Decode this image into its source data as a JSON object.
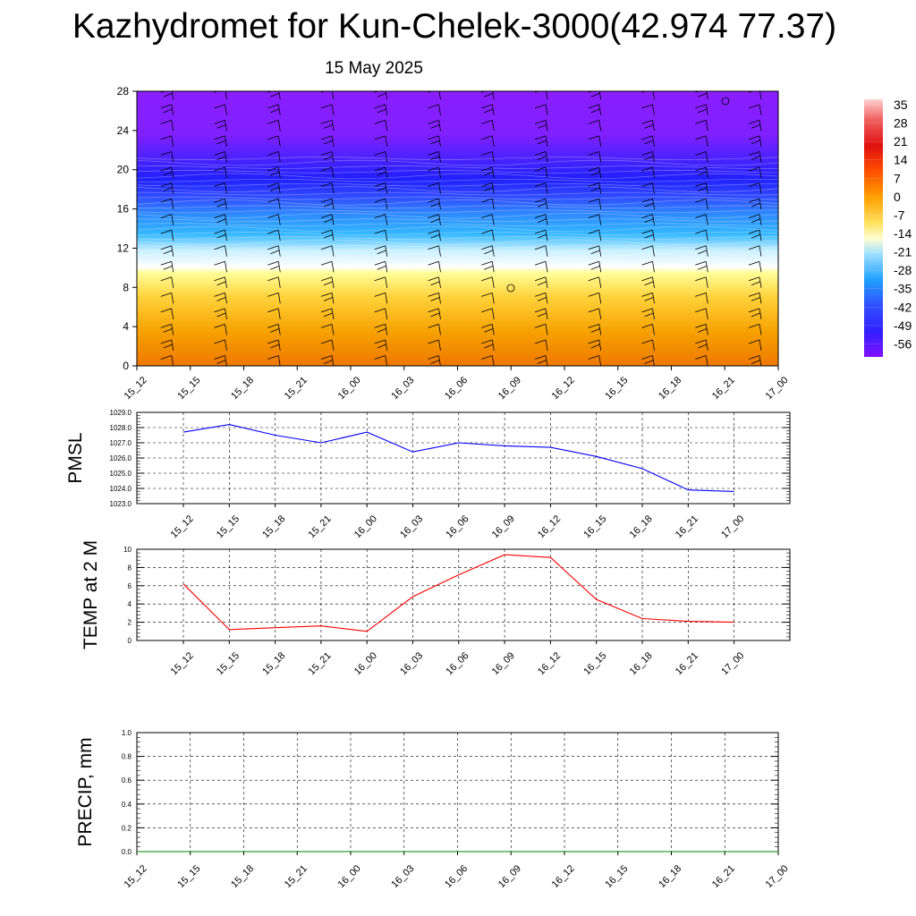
{
  "page": {
    "title": "Kazhydromet for Kun-Chelek-3000(42.974 77.37)",
    "date": "15 May 2025"
  },
  "time_labels": [
    "15_12",
    "15_15",
    "15_18",
    "15_21",
    "16_00",
    "16_03",
    "16_06",
    "16_09",
    "16_12",
    "16_15",
    "16_18",
    "16_21",
    "17_00"
  ],
  "colorbar": {
    "labels": [
      "35",
      "28",
      "21",
      "14",
      "7",
      "0",
      "-7",
      "-14",
      "-21",
      "-28",
      "-35",
      "-42",
      "-49",
      "-56"
    ]
  },
  "chart_data": [
    {
      "type": "heatmap",
      "name": "cross-section",
      "ylim": [
        0,
        28
      ],
      "yticks": [
        0,
        4,
        8,
        12,
        16,
        20,
        24,
        28
      ],
      "categories": [
        "15_12",
        "15_15",
        "15_18",
        "15_21",
        "16_00",
        "16_03",
        "16_06",
        "16_09",
        "16_12",
        "16_15",
        "16_18",
        "16_21",
        "17_00"
      ],
      "layers_colors": {
        "surface": "#f28c00",
        "freezing": "#ffffff",
        "cold": "#8c1eff"
      }
    },
    {
      "type": "line",
      "ylabel": "PMSL",
      "ylim": [
        1023.0,
        1029.0
      ],
      "yticks": [
        "1023.0",
        "1024.0",
        "1025.0",
        "1026.0",
        "1027.0",
        "1028.0",
        "1029.0"
      ],
      "categories": [
        "15_12",
        "15_15",
        "15_18",
        "15_21",
        "16_00",
        "16_03",
        "16_06",
        "16_09",
        "16_12",
        "16_15",
        "16_18",
        "16_21",
        "17_00"
      ],
      "values": [
        1027.7,
        1028.2,
        1027.5,
        1027.0,
        1027.7,
        1026.4,
        1027.0,
        1026.8,
        1026.7,
        1026.1,
        1025.3,
        1023.9,
        1023.8
      ],
      "color": "#0000ff"
    },
    {
      "type": "line",
      "ylabel": "TEMP at 2 M",
      "ylim": [
        0,
        10
      ],
      "yticks": [
        "0",
        "2",
        "4",
        "6",
        "8",
        "10"
      ],
      "categories": [
        "15_12",
        "15_15",
        "15_18",
        "15_21",
        "16_00",
        "16_03",
        "16_06",
        "16_09",
        "16_12",
        "16_15",
        "16_18",
        "16_21",
        "17_00"
      ],
      "values": [
        6.2,
        1.2,
        1.4,
        1.6,
        1.0,
        4.8,
        7.2,
        9.4,
        9.1,
        4.5,
        2.4,
        2.1,
        2.0
      ],
      "color": "#ff0000"
    },
    {
      "type": "line",
      "ylabel": "PRECIP, mm",
      "ylim": [
        0,
        1.0
      ],
      "yticks": [
        "0.0",
        "0.2",
        "0.4",
        "0.6",
        "0.8",
        "1.0"
      ],
      "categories": [
        "15_12",
        "15_15",
        "15_18",
        "15_21",
        "16_00",
        "16_03",
        "16_06",
        "16_09",
        "16_12",
        "16_15",
        "16_18",
        "16_21",
        "17_00"
      ],
      "values": [
        0,
        0,
        0,
        0,
        0,
        0,
        0,
        0,
        0,
        0,
        0,
        0,
        0
      ],
      "color": "#008000"
    }
  ]
}
